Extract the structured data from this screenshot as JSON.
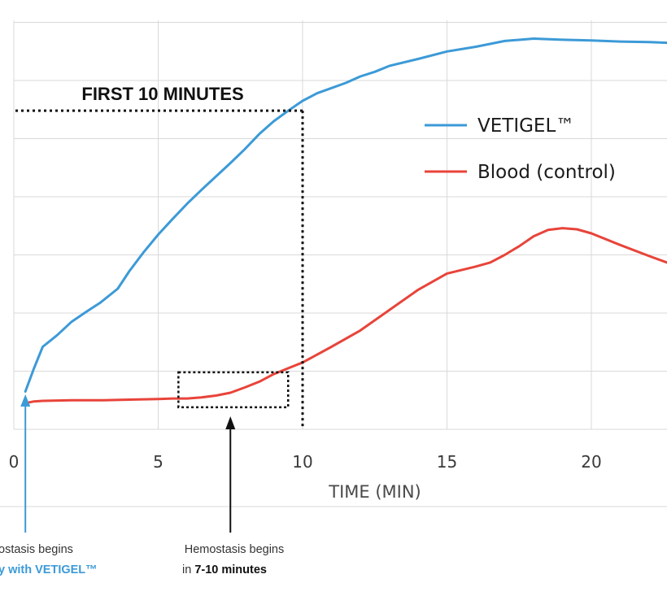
{
  "chart_data": {
    "type": "line",
    "title": "",
    "xlabel": "TIME (MIN)",
    "ylabel": "",
    "xlim": [
      0,
      23
    ],
    "ylim": [
      0,
      7
    ],
    "grid": true,
    "xticks": [
      0,
      5,
      10,
      15,
      20
    ],
    "legend_position": "top-right",
    "series": [
      {
        "name": "VETIGEL™",
        "color": "#3c9ad7",
        "x": [
          0.4,
          0.7,
          1.0,
          1.5,
          2.0,
          2.5,
          3.0,
          3.6,
          4.0,
          4.5,
          5.0,
          5.5,
          6.0,
          6.5,
          7.0,
          7.5,
          8.0,
          8.5,
          9.0,
          9.5,
          10.0,
          10.5,
          11.0,
          11.5,
          12.0,
          12.5,
          13.0,
          14.0,
          15.0,
          16.0,
          17.0,
          18.0,
          19.0,
          20.0,
          21.0,
          22.0,
          23.0
        ],
        "values": [
          0.65,
          1.05,
          1.42,
          1.62,
          1.85,
          2.02,
          2.18,
          2.42,
          2.72,
          3.05,
          3.35,
          3.62,
          3.88,
          4.12,
          4.35,
          4.58,
          4.82,
          5.08,
          5.3,
          5.48,
          5.65,
          5.78,
          5.87,
          5.96,
          6.07,
          6.15,
          6.25,
          6.37,
          6.5,
          6.58,
          6.68,
          6.72,
          6.7,
          6.69,
          6.67,
          6.66,
          6.64
        ]
      },
      {
        "name": "Blood (control)",
        "color": "#e8443a",
        "x": [
          0.4,
          0.7,
          1.0,
          2.0,
          3.0,
          4.0,
          5.0,
          5.5,
          6.0,
          6.5,
          7.0,
          7.5,
          8.0,
          8.5,
          9.0,
          9.5,
          10.0,
          11.0,
          12.0,
          13.0,
          14.0,
          15.0,
          16.0,
          16.5,
          17.0,
          17.5,
          18.0,
          18.5,
          19.0,
          19.5,
          20.0,
          21.0,
          22.0,
          23.0
        ],
        "values": [
          0.45,
          0.48,
          0.49,
          0.5,
          0.5,
          0.51,
          0.52,
          0.53,
          0.53,
          0.55,
          0.58,
          0.63,
          0.72,
          0.82,
          0.95,
          1.05,
          1.15,
          1.42,
          1.7,
          2.05,
          2.4,
          2.68,
          2.8,
          2.87,
          3.0,
          3.15,
          3.32,
          3.43,
          3.46,
          3.44,
          3.37,
          3.17,
          2.98,
          2.8
        ]
      }
    ],
    "annotations": {
      "first_10_label": "FIRST 10 MINUTES",
      "first_10_y": 5.48,
      "first_10_x": 10,
      "box": {
        "x": [
          5.7,
          9.5
        ],
        "y": [
          0.38,
          0.98
        ]
      },
      "vetigel_arrow_x": 0.4,
      "control_arrow_x": 7.5,
      "note_left_line1": "ostasis begins",
      "note_left_line2": "y with VETIGEL™",
      "note_right_line1": "Hemostasis begins",
      "note_right_prefix": "in ",
      "note_right_bold": "7-10 minutes"
    }
  }
}
